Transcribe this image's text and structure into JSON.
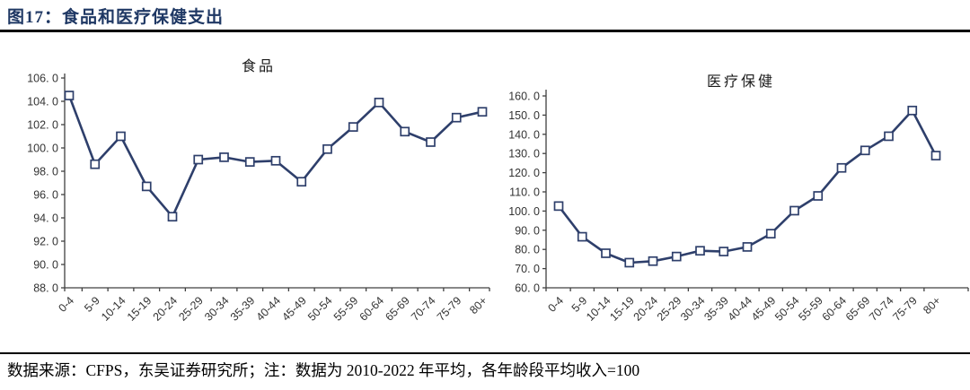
{
  "page": {
    "title": "图17：食品和医疗保健支出",
    "footer": "数据来源：CFPS，东吴证券研究所；注：数据为 2010-2022 年平均，各年龄段平均收入=100"
  },
  "colors": {
    "title_navy": "#1f3864",
    "line": "#2e3f6b",
    "marker_fill": "#ffffff",
    "rule": "#000000"
  },
  "chart_data": [
    {
      "type": "line",
      "title": "食品",
      "categories": [
        "0-4",
        "5-9",
        "10-14",
        "15-19",
        "20-24",
        "25-29",
        "30-34",
        "35-39",
        "40-44",
        "45-49",
        "50-54",
        "55-59",
        "60-64",
        "65-69",
        "70-74",
        "75-79",
        "80+"
      ],
      "values": [
        104.5,
        98.6,
        101.0,
        96.7,
        94.1,
        99.0,
        99.2,
        98.8,
        98.9,
        97.1,
        99.9,
        101.8,
        103.9,
        101.4,
        100.5,
        102.6,
        103.1
      ],
      "xlabel": "",
      "ylabel": "",
      "ylim": [
        88,
        106
      ],
      "ytick_step": 2,
      "ytick_labels": [
        "106. 0",
        "104. 0",
        "102. 0",
        "100. 0",
        "98. 0",
        "96. 0",
        "94. 0",
        "92. 0",
        "90. 0",
        "88. 0"
      ],
      "grid": false,
      "legend": "none",
      "marker": "square"
    },
    {
      "type": "line",
      "title": "医疗保健",
      "categories": [
        "0-4",
        "5-9",
        "10-14",
        "15-19",
        "20-24",
        "25-29",
        "30-34",
        "35-39",
        "40-44",
        "45-49",
        "50-54",
        "55-59",
        "60-64",
        "65-69",
        "70-74",
        "75-79",
        "80+"
      ],
      "values": [
        102.6,
        86.6,
        78.0,
        73.1,
        73.9,
        76.3,
        79.3,
        78.9,
        81.3,
        88.2,
        100.2,
        107.9,
        122.5,
        131.6,
        139.0,
        152.4,
        128.9
      ],
      "xlabel": "",
      "ylabel": "",
      "ylim": [
        60,
        160
      ],
      "ytick_step": 10,
      "ytick_labels": [
        "160. 0",
        "150. 0",
        "140. 0",
        "130. 0",
        "120. 0",
        "110. 0",
        "100. 0",
        "90. 0",
        "80. 0",
        "70. 0",
        "60. 0"
      ],
      "grid": false,
      "legend": "none",
      "marker": "square"
    }
  ]
}
